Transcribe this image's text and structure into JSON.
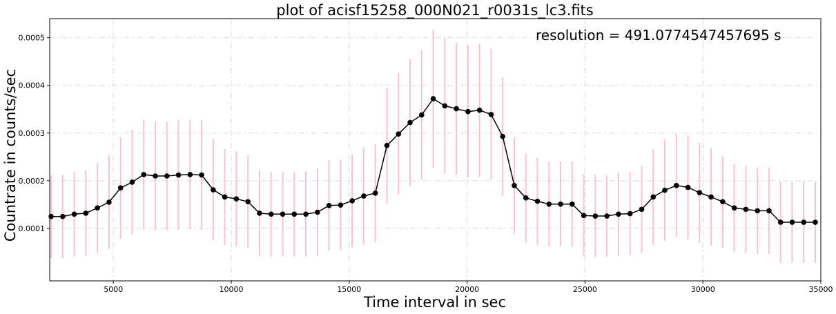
{
  "chart_data": {
    "type": "line",
    "title": "plot of acisf15258_000N021_r0031s_lc3.fits",
    "xlabel": "Time interval in sec",
    "ylabel": "Countrate in counts/sec",
    "annotation": "resolution = 491.0774547457695 s",
    "xlim": [
      2300,
      35000
    ],
    "ylim": [
      -1e-05,
      0.00054
    ],
    "xticks": [
      5000,
      10000,
      15000,
      20000,
      25000,
      30000,
      35000
    ],
    "xtick_labels": [
      "5000",
      "10000",
      "15000",
      "20000",
      "25000",
      "30000",
      "35000"
    ],
    "yticks": [
      0.0001,
      0.0002,
      0.0003,
      0.0004,
      0.0005
    ],
    "ytick_labels": [
      "0.0001",
      "0.0002",
      "0.0003",
      "0.0004",
      "0.0005"
    ],
    "grid": true,
    "line_color": "#000000",
    "errorbar_color": "#ffc0cb",
    "series": [
      {
        "x": [
          2360,
          2851,
          3342,
          3833,
          4324,
          4815,
          5306,
          5797,
          6288,
          6779,
          7270,
          7761,
          8252,
          8743,
          9234,
          9725,
          10216,
          10707,
          11198,
          11690,
          12181,
          12672,
          13163,
          13654,
          14145,
          14636,
          15127,
          15618,
          16109,
          16600,
          17091,
          17582,
          18073,
          18564,
          19055,
          19546,
          20037,
          20528,
          21019,
          21510,
          22001,
          22492,
          22983,
          23474,
          23965,
          24456,
          24947,
          25438,
          25929,
          26420,
          26911,
          27402,
          27893,
          28384,
          28875,
          29366,
          29857,
          30348,
          30839,
          31330,
          31821,
          32312,
          32803,
          33294,
          33785,
          34276,
          34767
        ],
        "y": [
          0.000125,
          0.000125,
          0.00013,
          0.000132,
          0.000143,
          0.000155,
          0.000185,
          0.000197,
          0.000213,
          0.00021,
          0.00021,
          0.000212,
          0.000213,
          0.000212,
          0.000181,
          0.000166,
          0.000162,
          0.000156,
          0.000132,
          0.00013,
          0.00013,
          0.00013,
          0.00013,
          0.000134,
          0.000148,
          0.000149,
          0.000158,
          0.000168,
          0.000174,
          0.000274,
          0.000298,
          0.000322,
          0.000338,
          0.000372,
          0.000357,
          0.000351,
          0.000345,
          0.000348,
          0.000339,
          0.000293,
          0.00019,
          0.000164,
          0.000157,
          0.000151,
          0.000151,
          0.000151,
          0.000127,
          0.000126,
          0.000126,
          0.00013,
          0.000131,
          0.00014,
          0.000166,
          0.00018,
          0.00019,
          0.000186,
          0.000175,
          0.000166,
          0.000156,
          0.000143,
          0.00014,
          0.000137,
          0.000137,
          0.000113,
          0.000113,
          0.000113,
          0.000113
        ],
        "yerr": [
          8.7e-05,
          8.7e-05,
          8.9e-05,
          9e-05,
          9.4e-05,
          9.8e-05,
          0.000107,
          0.00011,
          0.000115,
          0.000114,
          0.000114,
          0.000115,
          0.000115,
          0.000115,
          0.000106,
          0.000101,
          0.0001,
          9.8e-05,
          9e-05,
          8.9e-05,
          8.9e-05,
          8.9e-05,
          8.9e-05,
          9.1e-05,
          9.5e-05,
          9.5e-05,
          9.8e-05,
          0.000102,
          0.000103,
          0.000122,
          0.000128,
          0.000133,
          0.000136,
          0.000145,
          0.000142,
          0.000138,
          0.000138,
          0.00014,
          0.000138,
          0.000124,
          0.000101,
          9.3e-05,
          9.1e-05,
          8.9e-05,
          8.9e-05,
          8.9e-05,
          8.6e-05,
          8.6e-05,
          8.6e-05,
          8.7e-05,
          8.7e-05,
          9.1e-05,
          0.000101,
          0.000106,
          0.000109,
          0.000109,
          0.000105,
          0.000102,
          9.6e-05,
          9.3e-05,
          9.2e-05,
          9.1e-05,
          9.1e-05,
          8.5e-05,
          8.5e-05,
          8.5e-05,
          8.5e-05
        ]
      }
    ]
  }
}
